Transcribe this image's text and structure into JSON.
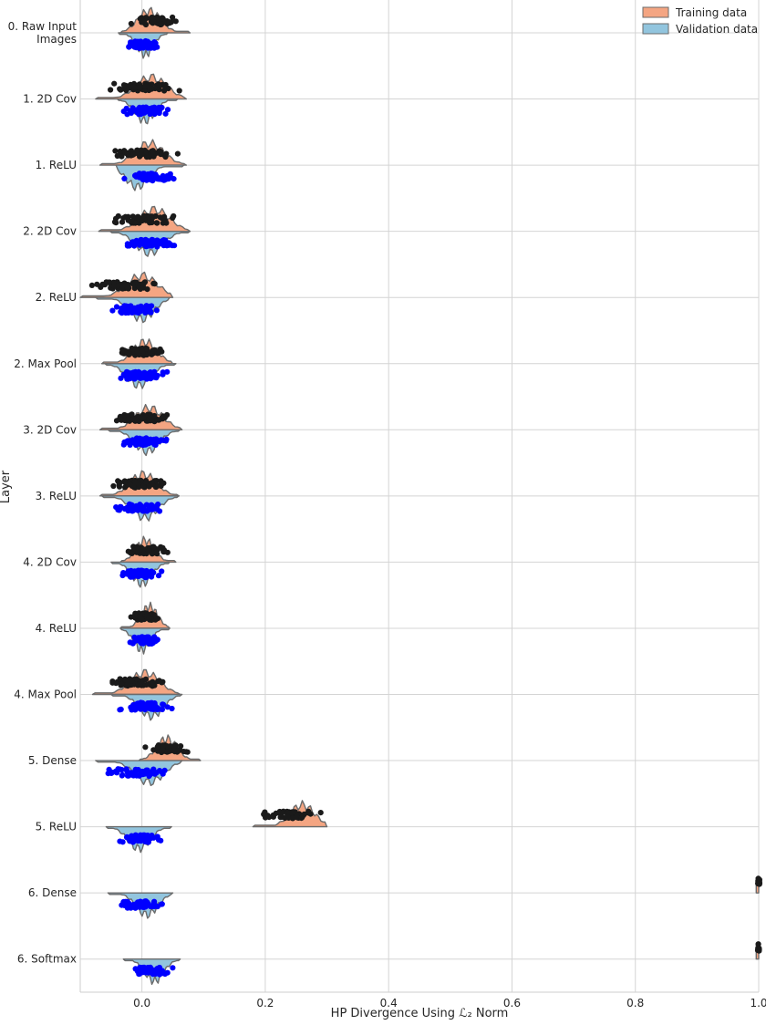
{
  "chart_data": {
    "type": "split-violin",
    "xlabel": "HP Divergence Using ℒ₂ Norm",
    "ylabel": "Layer",
    "xlim": [
      -0.1,
      1.0
    ],
    "x_ticks": [
      0.0,
      0.2,
      0.4,
      0.6,
      0.8,
      1.0
    ],
    "x_tick_labels": [
      "0.0",
      "0.2",
      "0.4",
      "0.6",
      "0.8",
      "1.0"
    ],
    "grid": true,
    "legend_position": "top-right",
    "series": [
      {
        "name": "Training data",
        "fill": "#f4a582",
        "point_color": "#1a1a1a"
      },
      {
        "name": "Validation data",
        "fill": "#92c5de",
        "point_color": "#0000ff"
      }
    ],
    "categories": [
      {
        "label": "0. Raw Input\nImages",
        "training": {
          "center": 0.012,
          "min": -0.035,
          "max": 0.078
        },
        "validation": {
          "center": 0.005,
          "min": -0.038,
          "max": 0.042
        }
      },
      {
        "label": "1. 2D Cov",
        "training": {
          "center": 0.015,
          "min": -0.075,
          "max": 0.072
        },
        "validation": {
          "center": 0.005,
          "min": -0.04,
          "max": 0.058
        }
      },
      {
        "label": "1. ReLU",
        "training": {
          "center": 0.012,
          "min": -0.068,
          "max": 0.072
        },
        "validation": {
          "center": -0.008,
          "min": -0.042,
          "max": 0.068
        }
      },
      {
        "label": "2. 2D Cov",
        "training": {
          "center": 0.02,
          "min": -0.07,
          "max": 0.078
        },
        "validation": {
          "center": 0.012,
          "min": -0.052,
          "max": 0.078
        }
      },
      {
        "label": "2. ReLU",
        "training": {
          "center": 0.0,
          "min": -0.1,
          "max": 0.05
        },
        "validation": {
          "center": 0.0,
          "min": -0.075,
          "max": 0.045
        }
      },
      {
        "label": "2. Max Pool",
        "training": {
          "center": 0.005,
          "min": -0.065,
          "max": 0.05
        },
        "validation": {
          "center": -0.005,
          "min": -0.06,
          "max": 0.055
        }
      },
      {
        "label": "3. 2D Cov",
        "training": {
          "center": 0.012,
          "min": -0.068,
          "max": 0.065
        },
        "validation": {
          "center": 0.008,
          "min": -0.055,
          "max": 0.062
        }
      },
      {
        "label": "3. ReLU",
        "training": {
          "center": 0.002,
          "min": -0.068,
          "max": 0.06
        },
        "validation": {
          "center": 0.005,
          "min": -0.065,
          "max": 0.06
        }
      },
      {
        "label": "4. 2D Cov",
        "training": {
          "center": 0.005,
          "min": -0.035,
          "max": 0.055
        },
        "validation": {
          "center": 0.0,
          "min": -0.05,
          "max": 0.045
        }
      },
      {
        "label": "4. ReLU",
        "training": {
          "center": 0.012,
          "min": -0.035,
          "max": 0.045
        },
        "validation": {
          "center": 0.0,
          "min": -0.035,
          "max": 0.045
        }
      },
      {
        "label": "4. Max Pool",
        "training": {
          "center": 0.005,
          "min": -0.08,
          "max": 0.062
        },
        "validation": {
          "center": 0.015,
          "min": -0.05,
          "max": 0.065
        }
      },
      {
        "label": "5. Dense",
        "training": {
          "center": 0.04,
          "min": -0.005,
          "max": 0.095
        },
        "validation": {
          "center": 0.012,
          "min": -0.075,
          "max": 0.065
        }
      },
      {
        "label": "5. ReLU",
        "training": {
          "center": 0.26,
          "min": 0.18,
          "max": 0.3
        },
        "validation": {
          "center": -0.005,
          "min": -0.058,
          "max": 0.048
        }
      },
      {
        "label": "6. Dense",
        "training": {
          "center": 1.0,
          "min": 0.996,
          "max": 1.0
        },
        "validation": {
          "center": 0.008,
          "min": -0.055,
          "max": 0.05
        }
      },
      {
        "label": "6. Softmax",
        "training": {
          "center": 1.0,
          "min": 0.996,
          "max": 1.0
        },
        "validation": {
          "center": 0.02,
          "min": -0.03,
          "max": 0.062
        }
      }
    ]
  }
}
